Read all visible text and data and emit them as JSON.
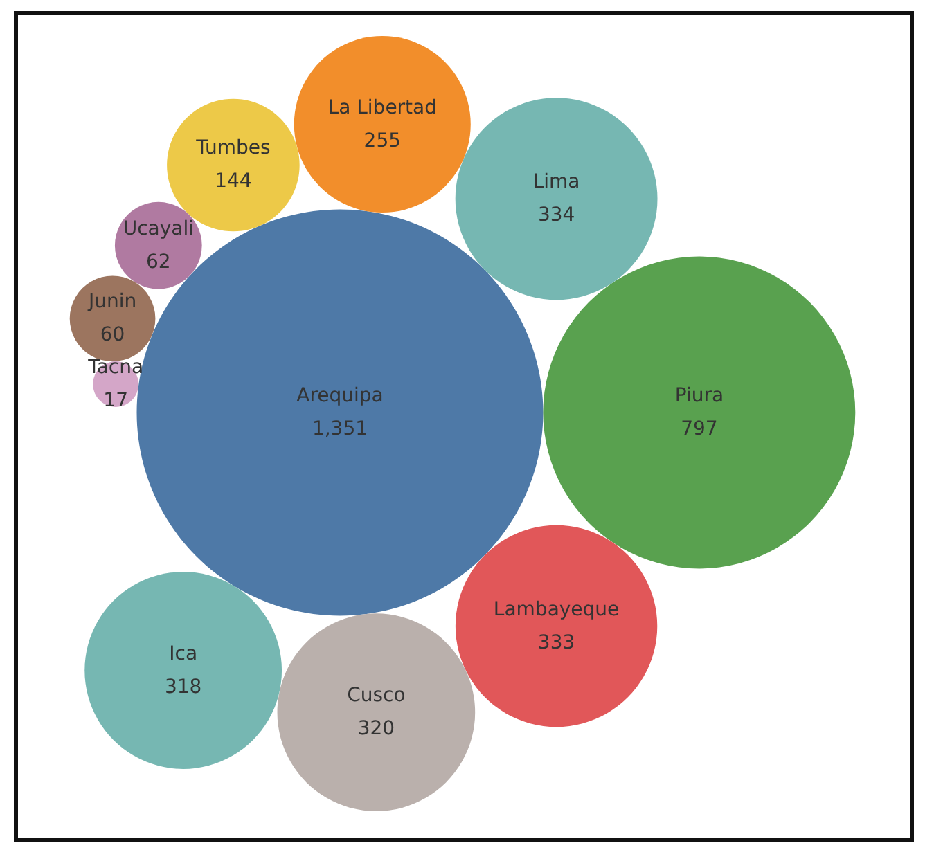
{
  "chart_data": {
    "type": "other",
    "categories": [
      "Arequipa",
      "Piura",
      "Lima",
      "Lambayeque",
      "Cusco",
      "Ica",
      "La Libertad",
      "Tumbes",
      "Ucayali",
      "Junin",
      "Tacna"
    ],
    "values": [
      1351,
      797,
      334,
      333,
      320,
      318,
      255,
      144,
      62,
      60,
      17
    ],
    "colors": [
      "#4e79a7",
      "#59a14f",
      "#76b7b2",
      "#e15759",
      "#bab0ac",
      "#76b7b2",
      "#f28e2b",
      "#edc948",
      "#b07aa1",
      "#9c755f",
      "#d4a6c8"
    ],
    "value_labels": [
      "1,351",
      "797",
      "334",
      "333",
      "320",
      "318",
      "255",
      "144",
      "62",
      "60",
      "17"
    ]
  }
}
